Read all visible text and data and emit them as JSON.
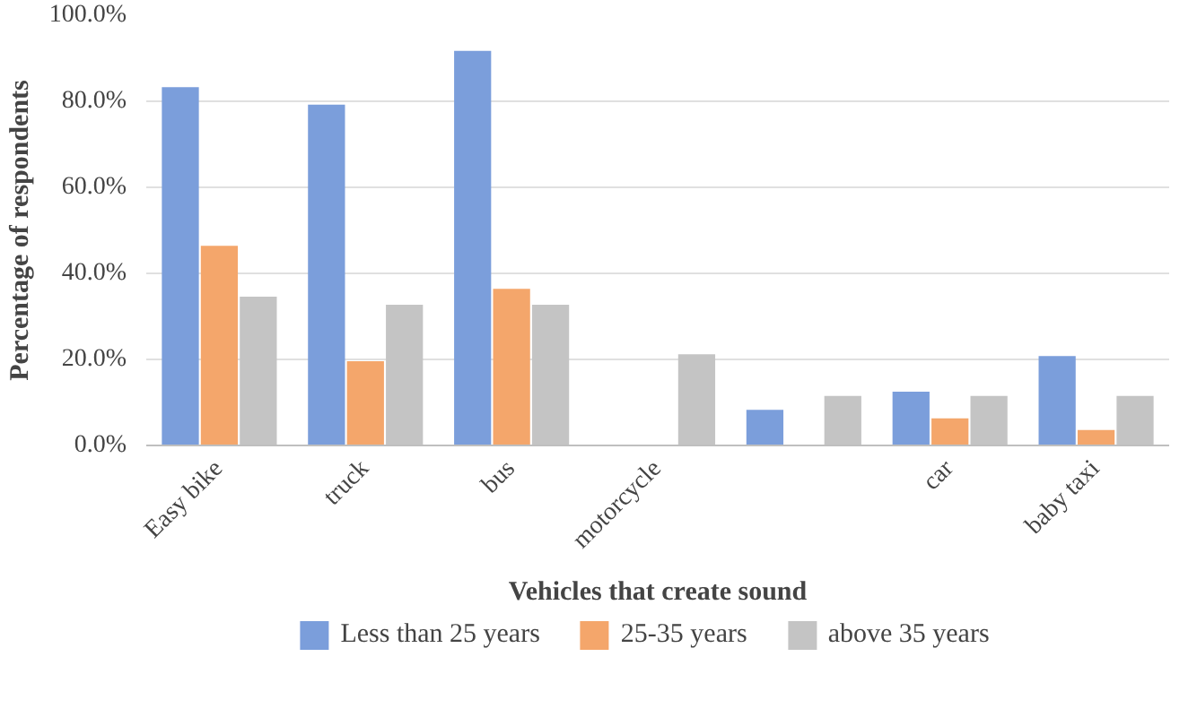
{
  "chart_data": {
    "type": "bar",
    "xlabel": "Vehicles that create sound",
    "ylabel": "Percentage of respondents",
    "categories": [
      "Easy bike",
      "truck",
      "bus",
      "motorcycle",
      null,
      "car",
      "baby taxi"
    ],
    "series": [
      {
        "name": "Less than 25 years",
        "color": "#7b9edb",
        "values": [
          83.3,
          79.2,
          91.7,
          0,
          8.3,
          12.5,
          20.8
        ]
      },
      {
        "name": "25-35 years",
        "color": "#f4a66b",
        "values": [
          46.4,
          19.6,
          36.4,
          0,
          0,
          6.3,
          3.6
        ]
      },
      {
        "name": "above 35 years",
        "color": "#c4c4c4",
        "values": [
          34.6,
          32.7,
          32.7,
          21.2,
          11.5,
          11.5,
          11.5
        ]
      }
    ],
    "ylim": [
      0,
      100
    ],
    "yticks": [
      {
        "value": 0,
        "label": "0.0%"
      },
      {
        "value": 20,
        "label": "20.0%"
      },
      {
        "value": 40,
        "label": "40.0%"
      },
      {
        "value": 60,
        "label": "60.0%"
      },
      {
        "value": 80,
        "label": "80.0%"
      },
      {
        "value": 100,
        "label": "100.0%"
      }
    ],
    "grid": "y",
    "legend": "bottom"
  }
}
